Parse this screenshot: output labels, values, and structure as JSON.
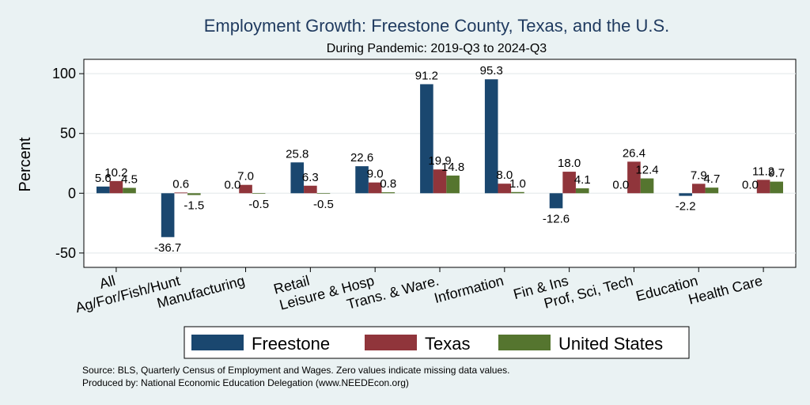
{
  "chart_data": {
    "type": "bar",
    "title": "Employment Growth: Freestone County, Texas, and the U.S.",
    "subtitle": "During Pandemic: 2019-Q3 to 2024-Q3",
    "ylabel": "Percent",
    "xlabel": "",
    "ylim": [
      -62,
      112
    ],
    "yticks": [
      100,
      50,
      0,
      -50
    ],
    "grid": true,
    "legend_position": "bottom",
    "categories": [
      "All",
      "Ag/For/Fish/Hunt",
      "Manufacturing",
      "Retail",
      "Leisure & Hosp",
      "Trans. & Ware.",
      "Information",
      "Fin & Ins",
      "Prof, Sci, Tech",
      "Education",
      "Health Care"
    ],
    "series": [
      {
        "name": "Freestone",
        "color": "#1a476f",
        "values": [
          5.6,
          -36.7,
          0.0,
          25.8,
          22.6,
          91.2,
          95.3,
          -12.6,
          0.0,
          -2.2,
          0.0
        ]
      },
      {
        "name": "Texas",
        "color": "#90353b",
        "values": [
          10.2,
          0.6,
          7.0,
          6.3,
          9.0,
          19.9,
          8.0,
          18.0,
          26.4,
          7.9,
          11.2
        ]
      },
      {
        "name": "United States",
        "color": "#55752f",
        "values": [
          4.5,
          -1.5,
          -0.5,
          -0.5,
          0.8,
          14.8,
          1.0,
          4.1,
          12.4,
          4.7,
          9.7
        ]
      }
    ]
  },
  "notes": {
    "source": "Source: BLS, Quarterly Census of Employment and Wages. Zero values indicate missing data values.",
    "produced": "Produced by: National Economic Education Delegation (www.NEEDEcon.org)"
  }
}
